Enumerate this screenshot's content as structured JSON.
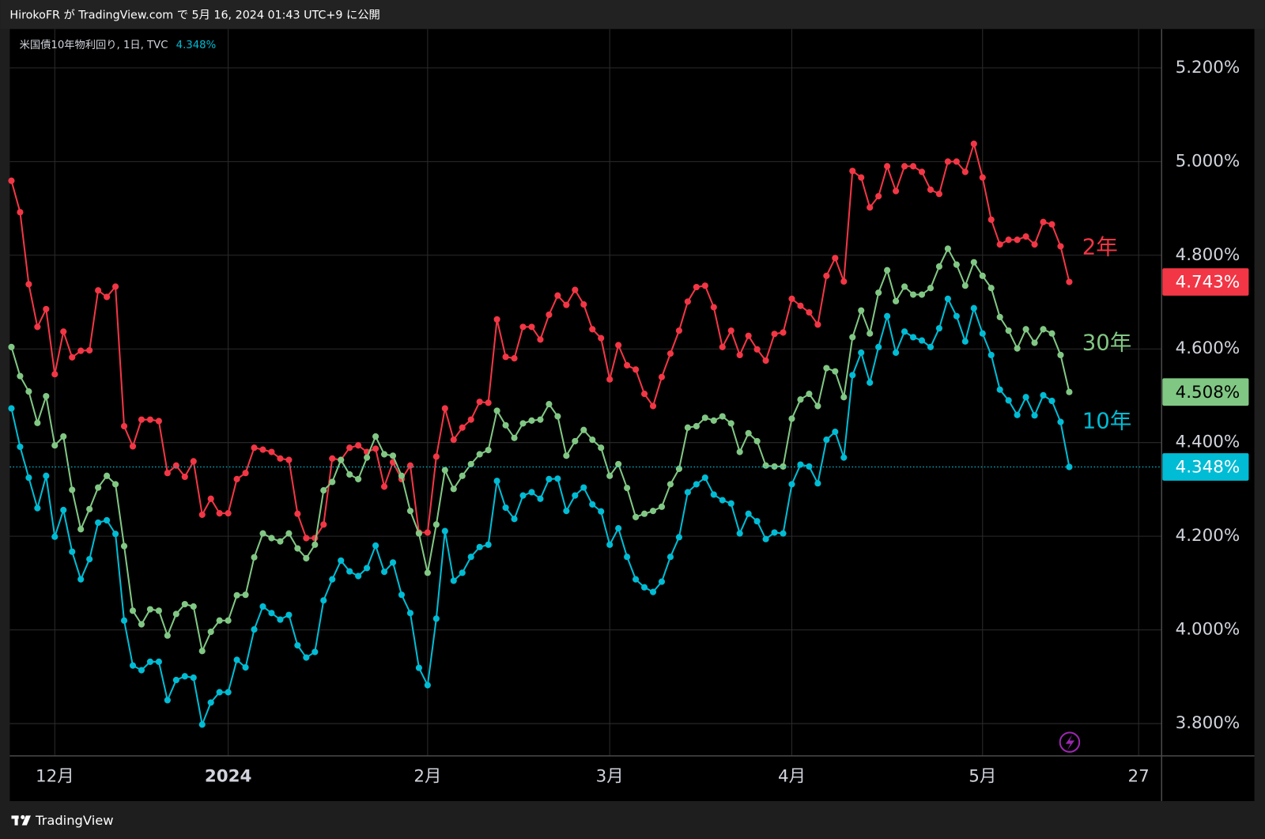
{
  "header": "HirokoFR が TradingView.com で 5月 16, 2024 01:43 UTC+9 に公開",
  "branding": "TradingView",
  "chart_data": {
    "type": "line",
    "legend_title": "米国債10年物利回り, 1日, TVC",
    "categories": [
      null,
      null,
      null,
      null,
      null,
      "12月",
      null,
      null,
      null,
      null,
      null,
      null,
      null,
      null,
      null,
      null,
      null,
      null,
      null,
      null,
      null,
      null,
      null,
      null,
      null,
      "2024",
      null,
      null,
      null,
      null,
      null,
      null,
      null,
      null,
      null,
      null,
      null,
      null,
      null,
      null,
      null,
      null,
      null,
      null,
      null,
      null,
      null,
      null,
      "2月",
      null,
      null,
      null,
      null,
      null,
      null,
      null,
      null,
      null,
      null,
      null,
      null,
      null,
      null,
      null,
      null,
      null,
      null,
      null,
      null,
      "3月",
      null,
      null,
      null,
      null,
      null,
      null,
      null,
      null,
      null,
      null,
      null,
      null,
      null,
      null,
      null,
      null,
      null,
      null,
      null,
      null,
      "4月",
      null,
      null,
      null,
      null,
      null,
      null,
      null,
      null,
      null,
      null,
      null,
      null,
      null,
      null,
      null,
      null,
      null,
      null,
      null,
      null,
      null,
      "5月",
      null,
      null,
      null,
      null,
      null,
      null,
      null,
      null,
      null,
      null,
      null,
      null,
      null,
      null,
      null,
      null,
      null,
      "27"
    ],
    "series": [
      {
        "name": "2年",
        "color": "#f23645",
        "last_label": "4.743%",
        "values": [
          4.959,
          4.892,
          4.738,
          4.647,
          4.685,
          4.546,
          4.637,
          4.582,
          4.596,
          4.597,
          4.725,
          4.711,
          4.733,
          4.435,
          4.392,
          4.449,
          4.449,
          4.446,
          4.335,
          4.351,
          4.327,
          4.36,
          4.246,
          4.28,
          4.249,
          4.249,
          4.322,
          4.335,
          4.389,
          4.385,
          4.38,
          4.366,
          4.363,
          4.248,
          4.196,
          4.196,
          4.225,
          4.366,
          4.363,
          4.389,
          4.394,
          4.38,
          4.387,
          4.306,
          4.358,
          4.322,
          4.351,
          4.208,
          4.208,
          4.37,
          4.473,
          4.406,
          4.432,
          4.449,
          4.487,
          4.485,
          4.663,
          4.583,
          4.58,
          4.647,
          4.647,
          4.62,
          4.673,
          4.714,
          4.694,
          4.726,
          4.695,
          4.642,
          4.623,
          4.535,
          4.608,
          4.565,
          4.556,
          4.504,
          4.478,
          4.54,
          4.59,
          4.639,
          4.701,
          4.732,
          4.735,
          4.689,
          4.604,
          4.639,
          4.587,
          4.628,
          4.599,
          4.575,
          4.632,
          4.635,
          4.707,
          4.692,
          4.678,
          4.652,
          4.756,
          4.794,
          4.744,
          4.98,
          4.966,
          4.902,
          4.926,
          4.99,
          4.937,
          4.99,
          4.99,
          4.978,
          4.94,
          4.931,
          5.0,
          5.0,
          4.978,
          5.038,
          4.966,
          4.876,
          4.823,
          4.833,
          4.833,
          4.84,
          4.823,
          4.871,
          4.866,
          4.819,
          4.743,
          null,
          null,
          null,
          null,
          null,
          null,
          null,
          null
        ]
      },
      {
        "name": "30年",
        "color": "#81c784",
        "last_label": "4.508%",
        "values": [
          4.604,
          4.542,
          4.509,
          4.442,
          4.499,
          4.394,
          4.413,
          4.299,
          4.215,
          4.258,
          4.304,
          4.329,
          4.311,
          4.179,
          4.041,
          4.012,
          4.044,
          4.041,
          3.988,
          4.034,
          4.055,
          4.05,
          3.955,
          3.996,
          4.02,
          4.02,
          4.074,
          4.075,
          4.155,
          4.206,
          4.196,
          4.189,
          4.206,
          4.174,
          4.153,
          4.182,
          4.298,
          4.316,
          4.363,
          4.332,
          4.322,
          4.368,
          4.413,
          4.375,
          4.372,
          4.329,
          4.254,
          4.206,
          4.122,
          4.225,
          4.341,
          4.301,
          4.329,
          4.354,
          4.375,
          4.384,
          4.468,
          4.437,
          4.41,
          4.441,
          4.447,
          4.449,
          4.482,
          4.456,
          4.372,
          4.403,
          4.427,
          4.406,
          4.389,
          4.329,
          4.354,
          4.303,
          4.241,
          4.248,
          4.254,
          4.263,
          4.311,
          4.344,
          4.432,
          4.435,
          4.453,
          4.447,
          4.456,
          4.441,
          4.38,
          4.42,
          4.403,
          4.351,
          4.349,
          4.349,
          4.451,
          4.492,
          4.504,
          4.478,
          4.559,
          4.552,
          4.497,
          4.625,
          4.682,
          4.633,
          4.72,
          4.768,
          4.702,
          4.733,
          4.716,
          4.716,
          4.73,
          4.776,
          4.814,
          4.78,
          4.735,
          4.785,
          4.756,
          4.73,
          4.668,
          4.639,
          4.601,
          4.642,
          4.613,
          4.642,
          4.633,
          4.587,
          4.508,
          null,
          null,
          null,
          null,
          null,
          null,
          null,
          null
        ]
      },
      {
        "name": "10年",
        "color": "#00bcd4",
        "last_label": "4.348%",
        "values": [
          4.473,
          4.391,
          4.325,
          4.26,
          4.329,
          4.199,
          4.256,
          4.167,
          4.108,
          4.151,
          4.229,
          4.234,
          4.205,
          4.02,
          3.924,
          3.914,
          3.932,
          3.932,
          3.85,
          3.893,
          3.901,
          3.898,
          3.798,
          3.845,
          3.867,
          3.867,
          3.936,
          3.92,
          4.001,
          4.05,
          4.036,
          4.022,
          4.032,
          3.967,
          3.941,
          3.953,
          4.063,
          4.108,
          4.148,
          4.125,
          4.115,
          4.132,
          4.18,
          4.124,
          4.144,
          4.075,
          4.036,
          3.919,
          3.882,
          4.024,
          4.211,
          4.105,
          4.122,
          4.156,
          4.177,
          4.182,
          4.318,
          4.261,
          4.237,
          4.287,
          4.294,
          4.28,
          4.322,
          4.323,
          4.254,
          4.287,
          4.304,
          4.268,
          4.253,
          4.182,
          4.217,
          4.156,
          4.108,
          4.091,
          4.081,
          4.103,
          4.156,
          4.198,
          4.294,
          4.311,
          4.325,
          4.289,
          4.277,
          4.27,
          4.206,
          4.248,
          4.232,
          4.194,
          4.208,
          4.206,
          4.311,
          4.353,
          4.349,
          4.313,
          4.406,
          4.423,
          4.368,
          4.544,
          4.592,
          4.528,
          4.604,
          4.67,
          4.592,
          4.637,
          4.625,
          4.618,
          4.604,
          4.644,
          4.707,
          4.67,
          4.616,
          4.687,
          4.633,
          4.587,
          4.513,
          4.49,
          4.459,
          4.497,
          4.458,
          4.501,
          4.489,
          4.444,
          4.348,
          null,
          null,
          null,
          null,
          null,
          null,
          null,
          null
        ]
      }
    ],
    "ylim": [
      3.731,
      5.283
    ],
    "yticks": [
      {
        "value": 3.8,
        "label": "3.800%"
      },
      {
        "value": 4.0,
        "label": "4.000%"
      },
      {
        "value": 4.2,
        "label": "4.200%"
      },
      {
        "value": 4.4,
        "label": "4.400%"
      },
      {
        "value": 4.6,
        "label": "4.600%"
      },
      {
        "value": 4.8,
        "label": "4.800%"
      },
      {
        "value": 5.0,
        "label": "5.000%"
      },
      {
        "value": 5.2,
        "label": "5.200%"
      }
    ],
    "grid": true
  }
}
